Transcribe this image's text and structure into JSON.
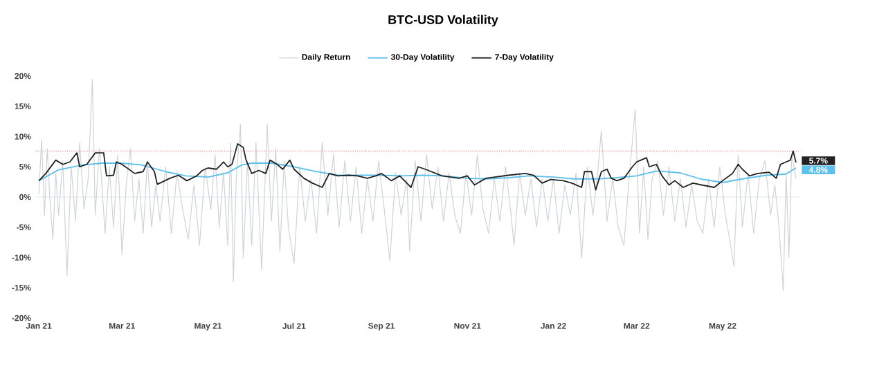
{
  "chart_data": {
    "type": "line",
    "title": "BTC-USD Volatility",
    "legend": "top",
    "xlim": [
      "2020-12-30",
      "2022-06-24"
    ],
    "xticks": [
      {
        "value": "2021-01-01",
        "label": "Jan 21"
      },
      {
        "value": "2021-03-01",
        "label": "Mar 21"
      },
      {
        "value": "2021-05-01",
        "label": "May 21"
      },
      {
        "value": "2021-07-01",
        "label": "Jul 21"
      },
      {
        "value": "2021-09-01",
        "label": "Sep 21"
      },
      {
        "value": "2021-11-01",
        "label": "Nov 21"
      },
      {
        "value": "2022-01-01",
        "label": "Jan 22"
      },
      {
        "value": "2022-03-01",
        "label": "Mar 22"
      },
      {
        "value": "2022-05-01",
        "label": "May 22"
      }
    ],
    "ylim": [
      -20,
      20
    ],
    "yticks": [
      {
        "value": -20,
        "label": "-20%"
      },
      {
        "value": -15,
        "label": "-15%"
      },
      {
        "value": -10,
        "label": "-10%"
      },
      {
        "value": -5,
        "label": "-5%"
      },
      {
        "value": 0,
        "label": "0%"
      },
      {
        "value": 5,
        "label": "5%"
      },
      {
        "value": 10,
        "label": "10%"
      },
      {
        "value": 15,
        "label": "15%"
      },
      {
        "value": 20,
        "label": "20%"
      }
    ],
    "ref_lines": [
      {
        "axis": "y",
        "value": 0,
        "color": "#e3e5e8",
        "line_style": "solid"
      },
      {
        "axis": "y",
        "value": 7.6,
        "color": "#e06666",
        "line_style": "dotted"
      }
    ],
    "series": [
      {
        "name": "Daily Return",
        "color": "#cfd3d8",
        "x": [
          "2021-01-01",
          "2021-01-03",
          "2021-01-05",
          "2021-01-07",
          "2021-01-09",
          "2021-01-11",
          "2021-01-13",
          "2021-01-15",
          "2021-01-18",
          "2021-01-21",
          "2021-01-24",
          "2021-01-27",
          "2021-01-30",
          "2021-02-02",
          "2021-02-05",
          "2021-02-08",
          "2021-02-10",
          "2021-02-13",
          "2021-02-17",
          "2021-02-20",
          "2021-02-23",
          "2021-02-26",
          "2021-03-01",
          "2021-03-04",
          "2021-03-07",
          "2021-03-10",
          "2021-03-13",
          "2021-03-16",
          "2021-03-19",
          "2021-03-22",
          "2021-03-25",
          "2021-03-28",
          "2021-04-01",
          "2021-04-05",
          "2021-04-09",
          "2021-04-13",
          "2021-04-17",
          "2021-04-21",
          "2021-04-25",
          "2021-04-29",
          "2021-05-03",
          "2021-05-06",
          "2021-05-09",
          "2021-05-12",
          "2021-05-15",
          "2021-05-17",
          "2021-05-19",
          "2021-05-21",
          "2021-05-24",
          "2021-05-26",
          "2021-05-29",
          "2021-06-01",
          "2021-06-04",
          "2021-06-08",
          "2021-06-12",
          "2021-06-15",
          "2021-06-18",
          "2021-06-21",
          "2021-06-24",
          "2021-06-27",
          "2021-07-01",
          "2021-07-05",
          "2021-07-09",
          "2021-07-13",
          "2021-07-17",
          "2021-07-21",
          "2021-07-25",
          "2021-07-29",
          "2021-08-02",
          "2021-08-06",
          "2021-08-10",
          "2021-08-14",
          "2021-08-18",
          "2021-08-22",
          "2021-08-26",
          "2021-08-30",
          "2021-09-03",
          "2021-09-07",
          "2021-09-11",
          "2021-09-15",
          "2021-09-19",
          "2021-09-21",
          "2021-09-25",
          "2021-09-29",
          "2021-10-03",
          "2021-10-07",
          "2021-10-11",
          "2021-10-15",
          "2021-10-19",
          "2021-10-23",
          "2021-10-27",
          "2021-10-31",
          "2021-11-04",
          "2021-11-08",
          "2021-11-12",
          "2021-11-16",
          "2021-11-20",
          "2021-11-24",
          "2021-11-28",
          "2021-12-02",
          "2021-12-04",
          "2021-12-08",
          "2021-12-12",
          "2021-12-16",
          "2021-12-20",
          "2021-12-24",
          "2021-12-28",
          "2022-01-01",
          "2022-01-05",
          "2022-01-09",
          "2022-01-13",
          "2022-01-17",
          "2022-01-21",
          "2022-01-25",
          "2022-01-29",
          "2022-02-01",
          "2022-02-04",
          "2022-02-08",
          "2022-02-12",
          "2022-02-16",
          "2022-02-20",
          "2022-02-24",
          "2022-02-28",
          "2022-03-03",
          "2022-03-06",
          "2022-03-09",
          "2022-03-12",
          "2022-03-16",
          "2022-03-20",
          "2022-03-24",
          "2022-03-28",
          "2022-04-01",
          "2022-04-05",
          "2022-04-09",
          "2022-04-13",
          "2022-04-17",
          "2022-04-21",
          "2022-04-25",
          "2022-04-29",
          "2022-05-03",
          "2022-05-06",
          "2022-05-09",
          "2022-05-12",
          "2022-05-15",
          "2022-05-19",
          "2022-05-23",
          "2022-05-27",
          "2022-05-31",
          "2022-06-04",
          "2022-06-07",
          "2022-06-10",
          "2022-06-13",
          "2022-06-15",
          "2022-06-17",
          "2022-06-19",
          "2022-06-22"
        ],
        "values": [
          0.5,
          9.5,
          -3,
          8,
          -1,
          -7,
          4,
          -3,
          6,
          -13,
          5,
          -4,
          9,
          -2,
          3,
          19.5,
          -3,
          8,
          -6,
          5,
          -5,
          7,
          -9.5,
          2,
          8,
          -4,
          3,
          -6,
          6,
          -5,
          2,
          -4,
          5,
          -6,
          4,
          -2,
          -7,
          2,
          -8,
          5,
          -2,
          7,
          -5,
          4,
          -8,
          9,
          -14,
          3,
          12,
          -10,
          6,
          -8,
          9,
          -12,
          12,
          -4,
          8,
          -9,
          6,
          -5,
          -11,
          5,
          -4,
          3,
          -6,
          9,
          -3,
          7,
          -5,
          6,
          -4,
          5,
          -6,
          3,
          -4,
          6,
          -2,
          -10.5,
          4,
          -3,
          3,
          -9,
          6,
          -4,
          7,
          -2,
          5,
          -4,
          4,
          -3,
          -6,
          4,
          -3,
          7,
          -2,
          -6,
          3,
          -4,
          5,
          -3,
          -8,
          4,
          -3,
          3,
          -5,
          3,
          -4,
          3,
          -6,
          2,
          -3,
          4,
          -10,
          5,
          -3,
          3,
          11,
          -4,
          3,
          -5,
          -8,
          4,
          14.5,
          -6,
          5,
          -7,
          3,
          6,
          -3,
          5,
          -4,
          3,
          -5,
          2,
          -4,
          -6,
          3,
          -5,
          5,
          -3,
          -7,
          -11.5,
          7,
          -5,
          4,
          -6,
          3,
          6,
          -3,
          2,
          -5,
          -15.5,
          4,
          -10,
          7,
          3
        ]
      },
      {
        "name": "30-Day Volatility",
        "color": "#5bc0eb",
        "x": [
          "2021-01-01",
          "2021-01-15",
          "2021-02-01",
          "2021-02-15",
          "2021-03-01",
          "2021-03-15",
          "2021-04-01",
          "2021-04-15",
          "2021-05-01",
          "2021-05-15",
          "2021-05-25",
          "2021-06-01",
          "2021-06-15",
          "2021-07-01",
          "2021-07-15",
          "2021-08-01",
          "2021-08-15",
          "2021-09-01",
          "2021-09-15",
          "2021-10-01",
          "2021-10-15",
          "2021-11-01",
          "2021-11-15",
          "2021-12-01",
          "2021-12-15",
          "2022-01-01",
          "2022-01-15",
          "2022-02-01",
          "2022-02-15",
          "2022-03-01",
          "2022-03-15",
          "2022-04-01",
          "2022-04-15",
          "2022-05-01",
          "2022-05-15",
          "2022-06-01",
          "2022-06-15",
          "2022-06-22"
        ],
        "values": [
          2.7,
          4.5,
          5.3,
          5.6,
          5.6,
          5.3,
          4.2,
          3.5,
          3.3,
          4.0,
          5.3,
          5.6,
          5.6,
          5.0,
          4.3,
          3.6,
          3.6,
          3.6,
          3.5,
          3.6,
          3.5,
          3.1,
          3.0,
          3.2,
          3.5,
          3.3,
          3.0,
          3.0,
          3.2,
          3.5,
          4.3,
          4.0,
          3.0,
          2.4,
          3.0,
          3.6,
          3.8,
          4.8
        ],
        "value_labels": [
          null,
          null,
          null,
          null,
          null,
          null,
          null,
          null,
          null,
          null,
          null,
          null,
          null,
          null,
          null,
          null,
          null,
          null,
          null,
          null,
          null,
          null,
          null,
          null,
          null,
          null,
          null,
          null,
          null,
          null,
          null,
          null,
          null,
          null,
          null,
          null,
          null,
          "4.8%"
        ]
      },
      {
        "name": "7-Day Volatility",
        "color": "#222222",
        "x": [
          "2021-01-01",
          "2021-01-06",
          "2021-01-13",
          "2021-01-18",
          "2021-01-23",
          "2021-01-28",
          "2021-01-30",
          "2021-02-04",
          "2021-02-10",
          "2021-02-16",
          "2021-02-18",
          "2021-02-23",
          "2021-02-25",
          "2021-03-01",
          "2021-03-10",
          "2021-03-16",
          "2021-03-19",
          "2021-03-24",
          "2021-03-26",
          "2021-04-04",
          "2021-04-10",
          "2021-04-16",
          "2021-04-23",
          "2021-04-27",
          "2021-05-01",
          "2021-05-07",
          "2021-05-12",
          "2021-05-15",
          "2021-05-18",
          "2021-05-22",
          "2021-05-26",
          "2021-05-28",
          "2021-06-01",
          "2021-06-06",
          "2021-06-11",
          "2021-06-14",
          "2021-06-19",
          "2021-06-23",
          "2021-06-28",
          "2021-07-01",
          "2021-07-08",
          "2021-07-14",
          "2021-07-21",
          "2021-07-26",
          "2021-08-01",
          "2021-08-09",
          "2021-08-15",
          "2021-08-22",
          "2021-08-28",
          "2021-09-01",
          "2021-09-08",
          "2021-09-14",
          "2021-09-19",
          "2021-09-22",
          "2021-09-27",
          "2021-10-02",
          "2021-10-14",
          "2021-10-26",
          "2021-11-01",
          "2021-11-06",
          "2021-11-14",
          "2021-11-30",
          "2021-12-12",
          "2021-12-18",
          "2021-12-24",
          "2021-12-30",
          "2022-01-08",
          "2022-01-14",
          "2022-01-21",
          "2022-01-23",
          "2022-01-28",
          "2022-01-31",
          "2022-02-04",
          "2022-02-08",
          "2022-02-11",
          "2022-02-15",
          "2022-02-20",
          "2022-02-26",
          "2022-03-01",
          "2022-03-04",
          "2022-03-08",
          "2022-03-10",
          "2022-03-15",
          "2022-03-19",
          "2022-03-24",
          "2022-03-28",
          "2022-04-03",
          "2022-04-10",
          "2022-04-16",
          "2022-04-25",
          "2022-05-01",
          "2022-05-08",
          "2022-05-12",
          "2022-05-15",
          "2022-05-20",
          "2022-05-26",
          "2022-06-03",
          "2022-06-08",
          "2022-06-11",
          "2022-06-15",
          "2022-06-18",
          "2022-06-20",
          "2022-06-22"
        ],
        "values": [
          2.7,
          3.9,
          6.1,
          5.4,
          5.8,
          7.3,
          5.0,
          5.4,
          7.3,
          7.3,
          3.5,
          3.6,
          5.8,
          5.4,
          3.9,
          4.2,
          5.8,
          4.2,
          2.1,
          3.1,
          3.6,
          2.7,
          3.5,
          4.4,
          4.8,
          4.6,
          5.8,
          5.0,
          5.4,
          8.8,
          8.2,
          6.1,
          3.9,
          4.4,
          3.9,
          6.1,
          5.4,
          4.6,
          6.1,
          4.6,
          3.1,
          2.3,
          1.6,
          3.9,
          3.5,
          3.6,
          3.5,
          3.1,
          3.5,
          3.9,
          2.7,
          3.5,
          2.3,
          1.6,
          5.0,
          4.6,
          3.5,
          3.1,
          3.5,
          2.0,
          3.1,
          3.6,
          3.9,
          3.6,
          2.3,
          2.9,
          2.7,
          2.3,
          1.6,
          4.2,
          4.2,
          1.2,
          4.2,
          4.6,
          3.1,
          2.7,
          3.1,
          5.0,
          5.8,
          6.1,
          6.5,
          5.0,
          5.4,
          3.5,
          2.0,
          2.7,
          1.6,
          2.3,
          2.0,
          1.6,
          2.7,
          3.9,
          5.4,
          4.6,
          3.5,
          3.9,
          4.1,
          3.1,
          5.4,
          5.8,
          6.1,
          7.6,
          5.7
        ],
        "value_labels": [
          null,
          null,
          null,
          null,
          null,
          null,
          null,
          null,
          null,
          null,
          null,
          null,
          null,
          null,
          null,
          null,
          null,
          null,
          null,
          null,
          null,
          null,
          null,
          null,
          null,
          null,
          null,
          null,
          null,
          null,
          null,
          null,
          null,
          null,
          null,
          null,
          null,
          null,
          null,
          null,
          null,
          null,
          null,
          null,
          null,
          null,
          null,
          null,
          null,
          null,
          null,
          null,
          null,
          null,
          null,
          null,
          null,
          null,
          null,
          null,
          null,
          null,
          null,
          null,
          null,
          null,
          null,
          null,
          null,
          null,
          null,
          null,
          null,
          null,
          null,
          null,
          null,
          null,
          null,
          null,
          null,
          null,
          null,
          null,
          null,
          null,
          null,
          null,
          null,
          null,
          null,
          null,
          null,
          null,
          null,
          null,
          null,
          null,
          null,
          null,
          null,
          null,
          "5.7%"
        ]
      }
    ]
  }
}
